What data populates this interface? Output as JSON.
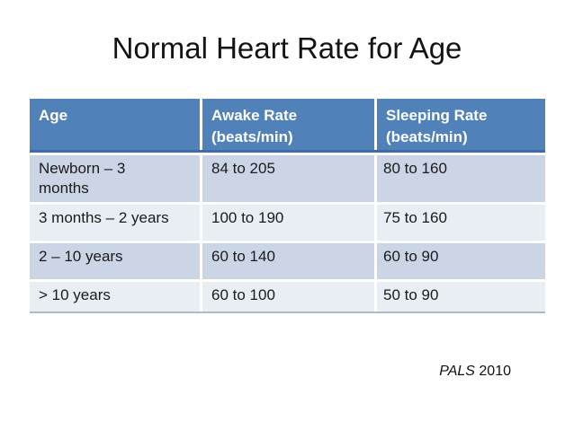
{
  "slide": {
    "title": "Normal Heart Rate for Age",
    "citation": {
      "source": "PALS",
      "year": "2010"
    }
  },
  "table": {
    "columns": [
      {
        "label": "Age",
        "unit": ""
      },
      {
        "label": "Awake Rate",
        "unit": "(beats/min)"
      },
      {
        "label": "Sleeping Rate",
        "unit": "(beats/min)"
      }
    ],
    "rows": [
      {
        "age": "Newborn – 3 months",
        "awake": "84 to 205",
        "sleeping": "80 to 160"
      },
      {
        "age": "3 months – 2 years",
        "awake": "100 to 190",
        "sleeping": "75 to 160"
      },
      {
        "age": "2 – 10 years",
        "awake": "60 to 140",
        "sleeping": "60 to 90"
      },
      {
        "age": "> 10 years",
        "awake": "60 to 100",
        "sleeping": "50 to 90"
      }
    ]
  },
  "colors": {
    "header_bg": "#5181b9",
    "header_underline": "#3e6ca3",
    "row_band_dark": "#ccd5e5",
    "row_band_light": "#e9edf4",
    "table_bottom_border": "#b0b9c6",
    "header_text": "#ffffff",
    "body_text": "#1b1b1b"
  }
}
